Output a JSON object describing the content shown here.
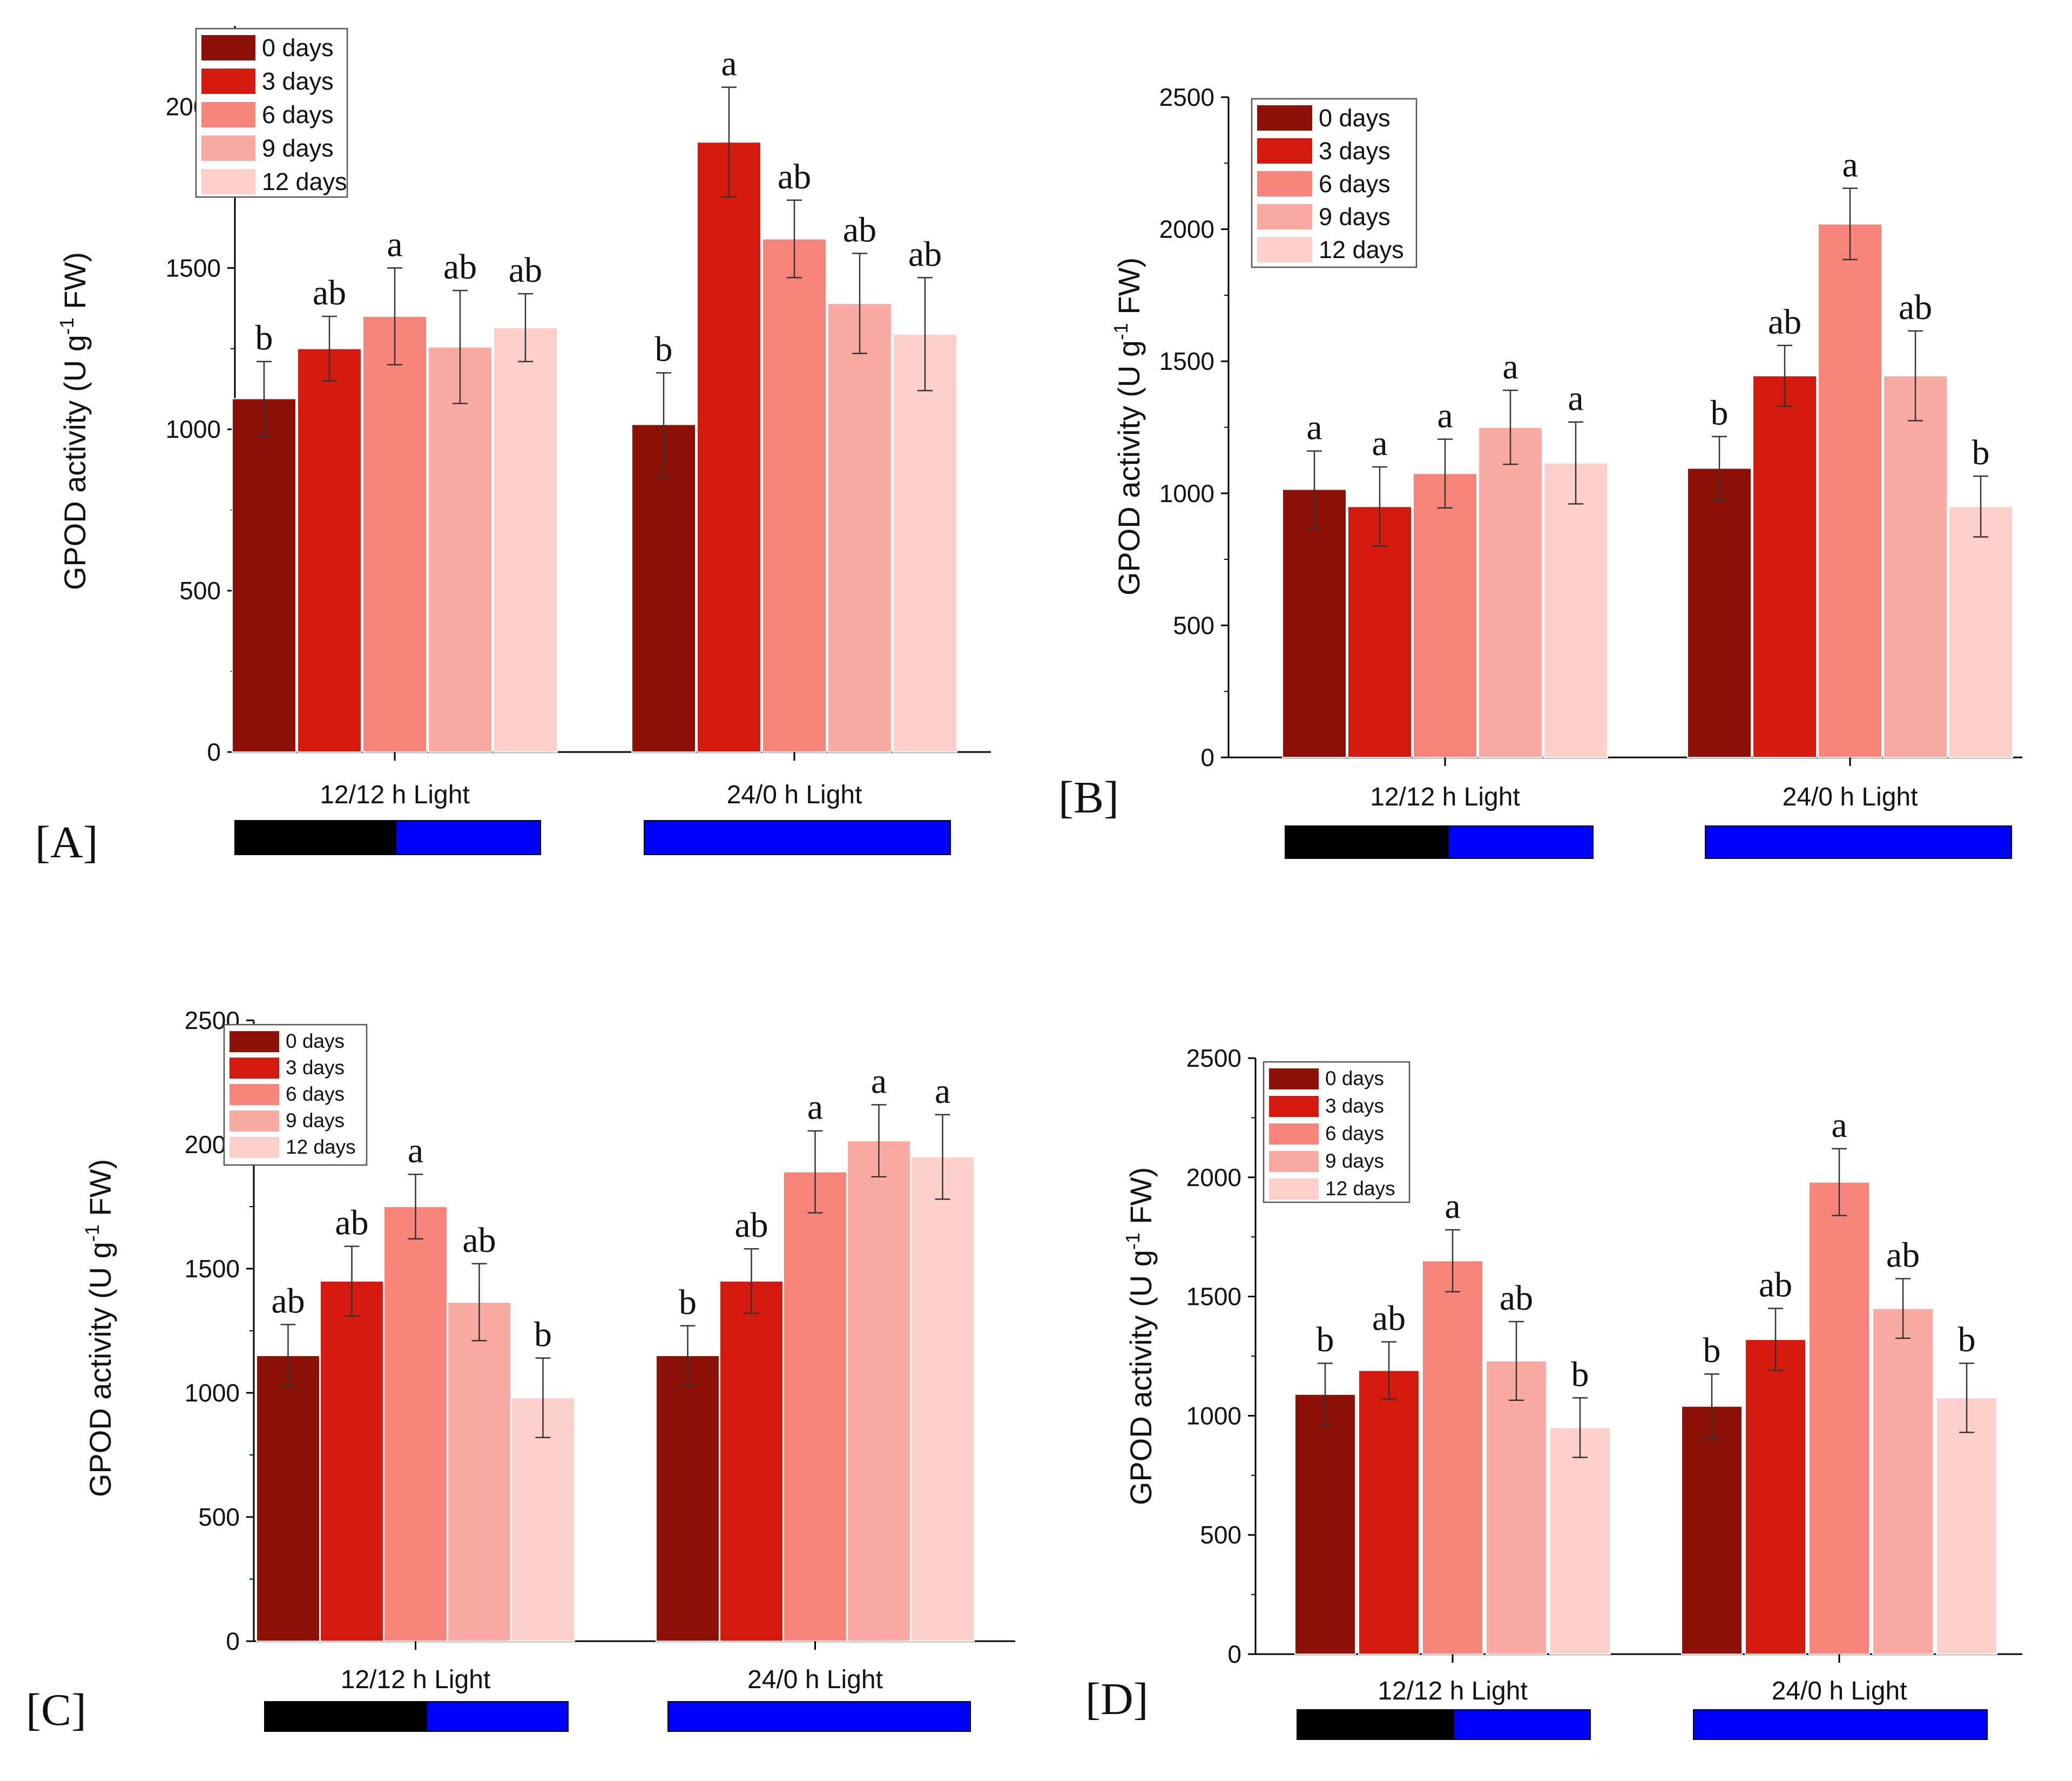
{
  "legend_colors": [
    "#8e1107",
    "#d41a0e",
    "#f7847a",
    "#fbaaa3",
    "#fdcfcb"
  ],
  "light_bar_colors": {
    "dark": "#000000",
    "light": "#0000ff"
  },
  "chart_data": [
    {
      "type": "bar",
      "panel": "[A]",
      "ylabel_main": "GPOD activity (U g",
      "ylabel_sup": "-1",
      "ylabel_tail": " FW)",
      "ylim": [
        0,
        2250
      ],
      "yticks": [
        0,
        500,
        1000,
        1500,
        2000
      ],
      "categories": [
        "12/12 h Light",
        "24/0 h Light"
      ],
      "legend": [
        "0 days",
        "3 days",
        "6 days",
        "9 days",
        "12 days"
      ],
      "series": [
        {
          "name": "0 days",
          "values": [
            1095,
            1015
          ],
          "errors": [
            115,
            160
          ],
          "labels": [
            "b",
            "b"
          ]
        },
        {
          "name": "3 days",
          "values": [
            1250,
            1890
          ],
          "errors": [
            100,
            170
          ],
          "labels": [
            "ab",
            "a"
          ]
        },
        {
          "name": "6 days",
          "values": [
            1350,
            1590
          ],
          "errors": [
            150,
            120
          ],
          "labels": [
            "a",
            "ab"
          ]
        },
        {
          "name": "9 days",
          "values": [
            1255,
            1390
          ],
          "errors": [
            175,
            155
          ],
          "labels": [
            "ab",
            "ab"
          ]
        },
        {
          "name": "12 days",
          "values": [
            1315,
            1295
          ],
          "errors": [
            105,
            175
          ],
          "labels": [
            "ab",
            "ab"
          ]
        }
      ]
    },
    {
      "type": "bar",
      "panel": "[B]",
      "ylabel_main": "GPOD activity (U g",
      "ylabel_sup": "-1",
      "ylabel_tail": " FW)",
      "ylim": [
        0,
        2500
      ],
      "yticks": [
        0,
        500,
        1000,
        1500,
        2000,
        2500
      ],
      "categories": [
        "12/12 h Light",
        "24/0 h Light"
      ],
      "legend": [
        "0 days",
        "3 days",
        "6 days",
        "9 days",
        "12 days"
      ],
      "series": [
        {
          "name": "0 days",
          "values": [
            1015,
            1095
          ],
          "errors": [
            145,
            120
          ],
          "labels": [
            "a",
            "b"
          ]
        },
        {
          "name": "3 days",
          "values": [
            950,
            1445
          ],
          "errors": [
            150,
            115
          ],
          "labels": [
            "a",
            "ab"
          ]
        },
        {
          "name": "6 days",
          "values": [
            1075,
            2020
          ],
          "errors": [
            130,
            135
          ],
          "labels": [
            "a",
            "a"
          ]
        },
        {
          "name": "9 days",
          "values": [
            1250,
            1445
          ],
          "errors": [
            140,
            170
          ],
          "labels": [
            "a",
            "ab"
          ]
        },
        {
          "name": "12 days",
          "values": [
            1115,
            950
          ],
          "errors": [
            155,
            115
          ],
          "labels": [
            "a",
            "b"
          ]
        }
      ]
    },
    {
      "type": "bar",
      "panel": "[C]",
      "ylabel_main": "GPOD activity (U g",
      "ylabel_sup": "-1",
      "ylabel_tail": " FW)",
      "ylim": [
        0,
        2500
      ],
      "yticks": [
        0,
        500,
        1000,
        1500,
        2000,
        2500
      ],
      "categories": [
        "12/12 h Light",
        "24/0 h Light"
      ],
      "legend": [
        "0 days",
        "3 days",
        "6 days",
        "9 days",
        "12 days"
      ],
      "series": [
        {
          "name": "0 days",
          "values": [
            1150,
            1150
          ],
          "errors": [
            125,
            120
          ],
          "labels": [
            "ab",
            "b"
          ]
        },
        {
          "name": "3 days",
          "values": [
            1450,
            1450
          ],
          "errors": [
            140,
            130
          ],
          "labels": [
            "ab",
            "ab"
          ]
        },
        {
          "name": "6 days",
          "values": [
            1750,
            1890
          ],
          "errors": [
            130,
            165
          ],
          "labels": [
            "a",
            "a"
          ]
        },
        {
          "name": "9 days",
          "values": [
            1365,
            2015
          ],
          "errors": [
            155,
            145
          ],
          "labels": [
            "ab",
            "a"
          ]
        },
        {
          "name": "12 days",
          "values": [
            980,
            1950
          ],
          "errors": [
            160,
            170
          ],
          "labels": [
            "b",
            "a"
          ]
        }
      ]
    },
    {
      "type": "bar",
      "panel": "[D]",
      "ylabel_main": "GPOD activity (U g",
      "ylabel_sup": "-1",
      "ylabel_tail": " FW)",
      "ylim": [
        0,
        2500
      ],
      "yticks": [
        0,
        500,
        1000,
        1500,
        2000,
        2500
      ],
      "categories": [
        "12/12 h Light",
        "24/0 h Light"
      ],
      "legend": [
        "0 days",
        "3 days",
        "6 days",
        "9 days",
        "12 days"
      ],
      "series": [
        {
          "name": "0 days",
          "values": [
            1090,
            1040
          ],
          "errors": [
            130,
            135
          ],
          "labels": [
            "b",
            "b"
          ]
        },
        {
          "name": "3 days",
          "values": [
            1190,
            1320
          ],
          "errors": [
            120,
            130
          ],
          "labels": [
            "ab",
            "ab"
          ]
        },
        {
          "name": "6 days",
          "values": [
            1650,
            1980
          ],
          "errors": [
            130,
            140
          ],
          "labels": [
            "a",
            "a"
          ]
        },
        {
          "name": "9 days",
          "values": [
            1230,
            1450
          ],
          "errors": [
            165,
            125
          ],
          "labels": [
            "ab",
            "ab"
          ]
        },
        {
          "name": "12 days",
          "values": [
            950,
            1075
          ],
          "errors": [
            125,
            145
          ],
          "labels": [
            "b",
            "b"
          ]
        }
      ]
    }
  ]
}
